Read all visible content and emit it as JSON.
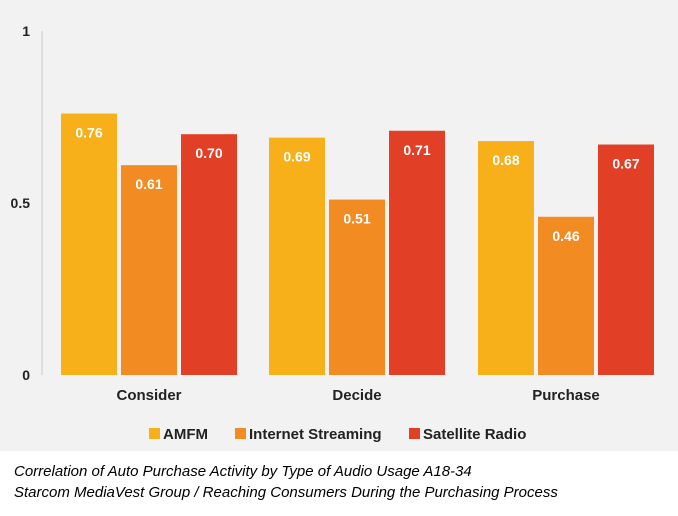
{
  "chart_data": {
    "type": "bar",
    "title": "",
    "xlabel": "",
    "ylabel": "",
    "categories": [
      "Consider",
      "Decide",
      "Purchase"
    ],
    "series": [
      {
        "name": "AMFM",
        "values": [
          0.76,
          0.69,
          0.68
        ],
        "color": "#f7b01a"
      },
      {
        "name": "Internet Streaming",
        "values": [
          0.61,
          0.51,
          0.46
        ],
        "color": "#f28c22"
      },
      {
        "name": "Satellite Radio",
        "values": [
          0.7,
          0.71,
          0.67
        ],
        "color": "#e23f27"
      }
    ],
    "data_labels": [
      [
        "0.76",
        "0.69",
        "0.68"
      ],
      [
        "0.61",
        "0.51",
        "0.46"
      ],
      [
        "0.70",
        "0.71",
        "0.67"
      ]
    ],
    "ylim": [
      0,
      1
    ],
    "yticks": [
      0,
      0.5,
      1
    ],
    "ytick_labels": [
      "0",
      "0.5",
      "1"
    ],
    "grid": false,
    "legend_position": "bottom-center"
  },
  "caption": {
    "line1": "Correlation of Auto Purchase Activity by Type of Audio Usage A18-34",
    "line2": "Starcom MediaVest Group / Reaching Consumers During the Purchasing Process"
  }
}
